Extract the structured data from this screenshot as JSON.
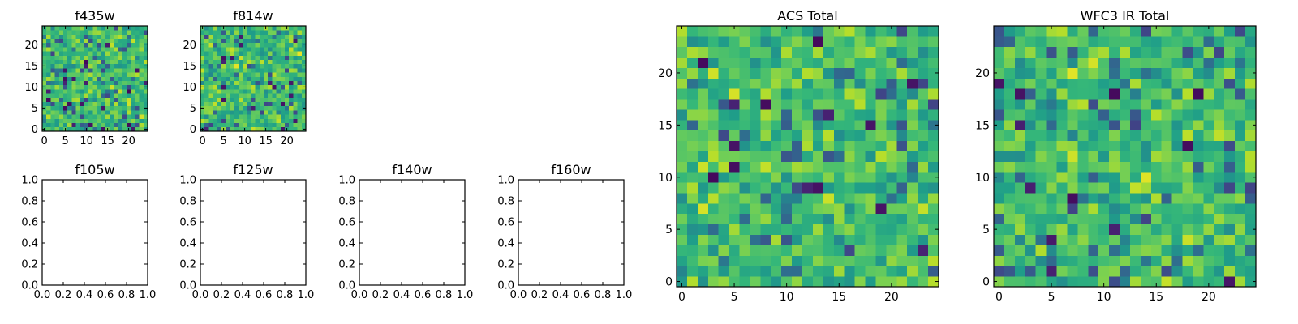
{
  "chart_data": [
    {
      "id": "f435w",
      "type": "heatmap",
      "title": "f435w",
      "xlim": [
        -0.5,
        24.5
      ],
      "ylim": [
        -0.5,
        24.5
      ],
      "origin": "lower",
      "xticks": [
        0,
        5,
        10,
        15,
        20
      ],
      "yticks": [
        0,
        5,
        10,
        15,
        20
      ],
      "xtick_labels": [
        "0",
        "5",
        "10",
        "15",
        "20"
      ],
      "ytick_labels": [
        "0",
        "5",
        "10",
        "15",
        "20"
      ],
      "grid_size": [
        25,
        25
      ],
      "colormap": "viridis",
      "values": "random_noise_field",
      "seed": 435
    },
    {
      "id": "f814w",
      "type": "heatmap",
      "title": "f814w",
      "xlim": [
        -0.5,
        24.5
      ],
      "ylim": [
        -0.5,
        24.5
      ],
      "origin": "lower",
      "xticks": [
        0,
        5,
        10,
        15,
        20
      ],
      "yticks": [
        0,
        5,
        10,
        15,
        20
      ],
      "xtick_labels": [
        "0",
        "5",
        "10",
        "15",
        "20"
      ],
      "ytick_labels": [
        "0",
        "5",
        "10",
        "15",
        "20"
      ],
      "grid_size": [
        25,
        25
      ],
      "colormap": "viridis",
      "values": "random_noise_field",
      "seed": 814
    },
    {
      "id": "f105w",
      "type": "empty",
      "title": "f105w",
      "xlim": [
        0,
        1
      ],
      "ylim": [
        0,
        1
      ],
      "xticks": [
        0,
        0.2,
        0.4,
        0.6,
        0.8,
        1.0
      ],
      "yticks": [
        0,
        0.2,
        0.4,
        0.6,
        0.8,
        1.0
      ],
      "xtick_labels": [
        "0.0",
        "0.2",
        "0.4",
        "0.6",
        "0.8",
        "1.0"
      ],
      "ytick_labels": [
        "0.0",
        "0.2",
        "0.4",
        "0.6",
        "0.8",
        "1.0"
      ]
    },
    {
      "id": "f125w",
      "type": "empty",
      "title": "f125w",
      "xlim": [
        0,
        1
      ],
      "ylim": [
        0,
        1
      ],
      "xticks": [
        0,
        0.2,
        0.4,
        0.6,
        0.8,
        1.0
      ],
      "yticks": [
        0,
        0.2,
        0.4,
        0.6,
        0.8,
        1.0
      ],
      "xtick_labels": [
        "0.0",
        "0.2",
        "0.4",
        "0.6",
        "0.8",
        "1.0"
      ],
      "ytick_labels": [
        "0.0",
        "0.2",
        "0.4",
        "0.6",
        "0.8",
        "1.0"
      ]
    },
    {
      "id": "f140w",
      "type": "empty",
      "title": "f140w",
      "xlim": [
        0,
        1
      ],
      "ylim": [
        0,
        1
      ],
      "xticks": [
        0,
        0.2,
        0.4,
        0.6,
        0.8,
        1.0
      ],
      "yticks": [
        0,
        0.2,
        0.4,
        0.6,
        0.8,
        1.0
      ],
      "xtick_labels": [
        "0.0",
        "0.2",
        "0.4",
        "0.6",
        "0.8",
        "1.0"
      ],
      "ytick_labels": [
        "0.0",
        "0.2",
        "0.4",
        "0.6",
        "0.8",
        "1.0"
      ]
    },
    {
      "id": "f160w",
      "type": "empty",
      "title": "f160w",
      "xlim": [
        0,
        1
      ],
      "ylim": [
        0,
        1
      ],
      "xticks": [
        0,
        0.2,
        0.4,
        0.6,
        0.8,
        1.0
      ],
      "yticks": [
        0,
        0.2,
        0.4,
        0.6,
        0.8,
        1.0
      ],
      "xtick_labels": [
        "0.0",
        "0.2",
        "0.4",
        "0.6",
        "0.8",
        "1.0"
      ],
      "ytick_labels": [
        "0.0",
        "0.2",
        "0.4",
        "0.6",
        "0.8",
        "1.0"
      ]
    },
    {
      "id": "acs-total",
      "type": "heatmap",
      "title": "ACS Total",
      "xlim": [
        -0.5,
        24.5
      ],
      "ylim": [
        -0.5,
        24.5
      ],
      "origin": "lower",
      "xticks": [
        0,
        5,
        10,
        15,
        20
      ],
      "yticks": [
        0,
        5,
        10,
        15,
        20
      ],
      "xtick_labels": [
        "0",
        "5",
        "10",
        "15",
        "20"
      ],
      "ytick_labels": [
        "0",
        "5",
        "10",
        "15",
        "20"
      ],
      "grid_size": [
        25,
        25
      ],
      "colormap": "viridis",
      "values": "random_noise_field",
      "seed": 1001
    },
    {
      "id": "wfc3-ir-total",
      "type": "heatmap",
      "title": "WFC3 IR Total",
      "xlim": [
        -0.5,
        24.5
      ],
      "ylim": [
        -0.5,
        24.5
      ],
      "origin": "lower",
      "xticks": [
        0,
        5,
        10,
        15,
        20
      ],
      "yticks": [
        0,
        5,
        10,
        15,
        20
      ],
      "xtick_labels": [
        "0",
        "5",
        "10",
        "15",
        "20"
      ],
      "ytick_labels": [
        "0",
        "5",
        "10",
        "15",
        "20"
      ],
      "grid_size": [
        25,
        25
      ],
      "colormap": "viridis",
      "values": "random_noise_field",
      "seed": 2002
    }
  ]
}
